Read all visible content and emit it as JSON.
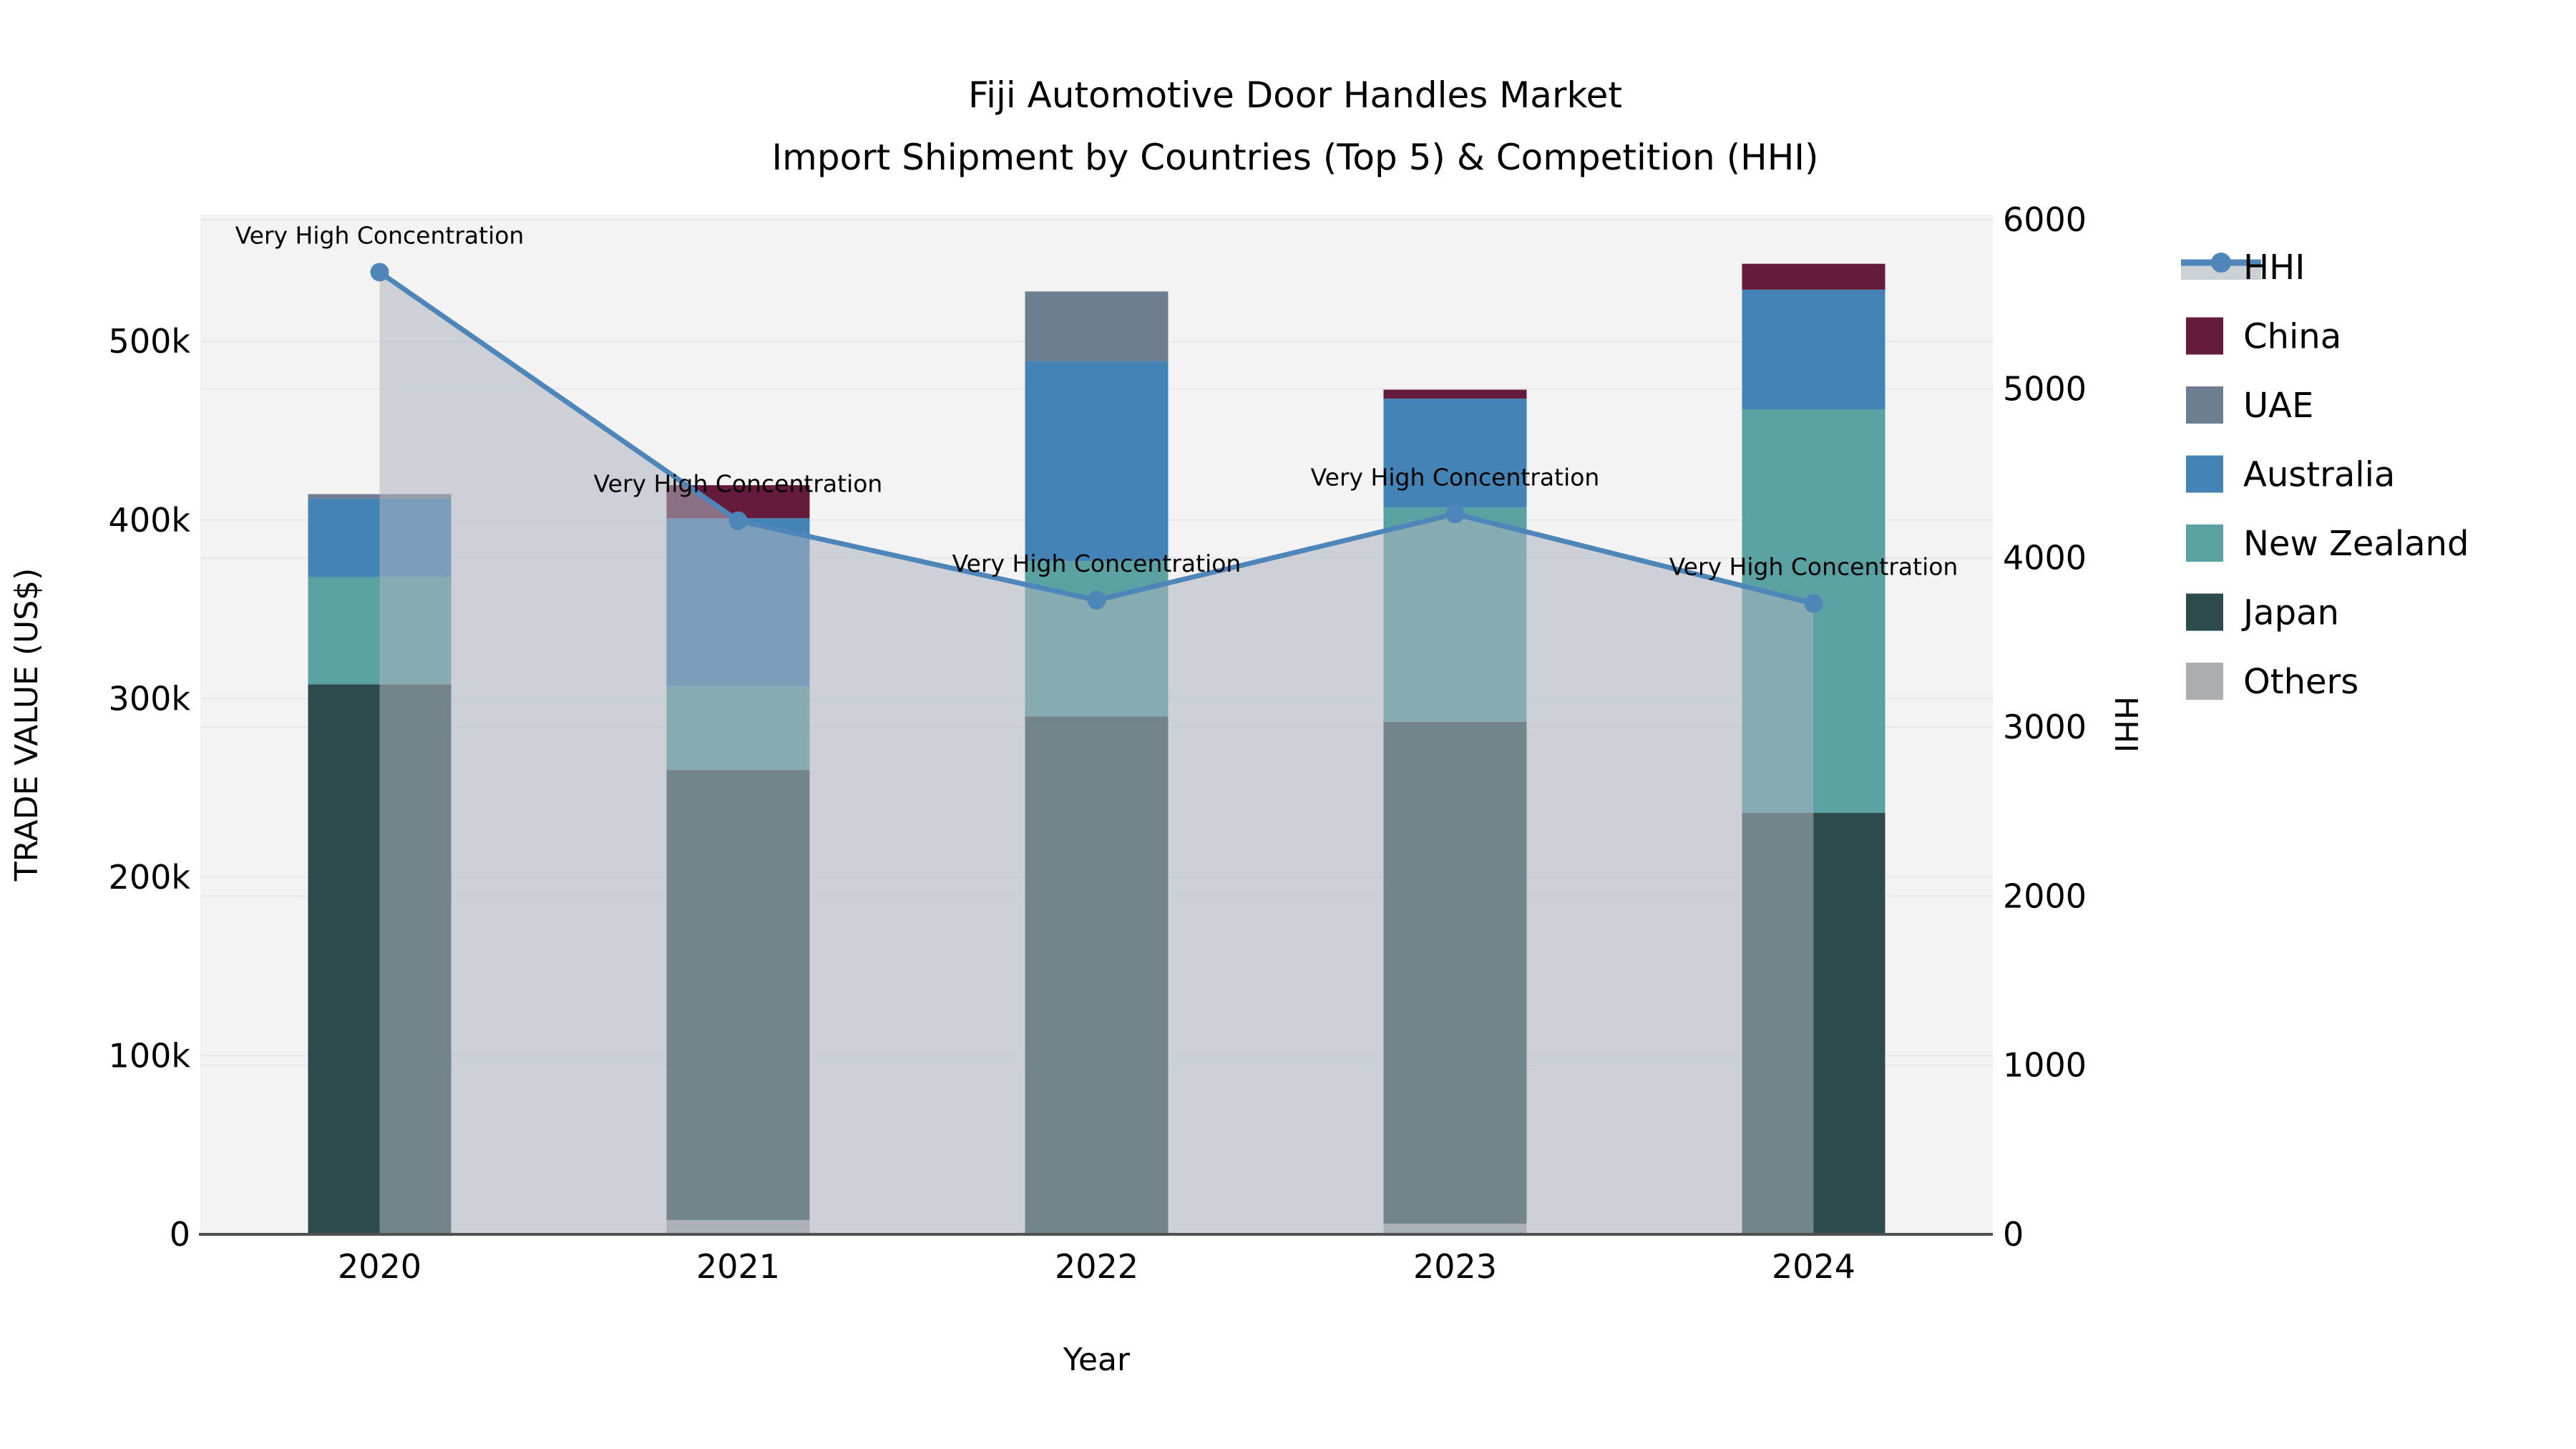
{
  "chart_data": {
    "type": "bar",
    "subtype": "stacked-bar-with-line",
    "title_line1": "Fiji Automotive Door Handles Market",
    "title_line2": "Import Shipment by Countries (Top 5) & Competition (HHI)",
    "xlabel": "Year",
    "ylabel_left": "TRADE VALUE (US$)",
    "ylabel_right": "HHI",
    "categories": [
      "2020",
      "2021",
      "2022",
      "2023",
      "2024"
    ],
    "stack_note": "series listed bottom-to-top as stacked",
    "series": [
      {
        "name": "Others",
        "color": "#abaeb0",
        "values": [
          0,
          8000,
          0,
          6000,
          0
        ]
      },
      {
        "name": "Japan",
        "color": "#2d4b4c",
        "values": [
          308000,
          252000,
          290000,
          281000,
          236000
        ]
      },
      {
        "name": "New Zealand",
        "color": "#5aa1a3",
        "values": [
          60000,
          47000,
          87000,
          120000,
          226000
        ]
      },
      {
        "name": "Australia",
        "color": "#4483b6",
        "values": [
          44000,
          94000,
          112000,
          61000,
          67000
        ]
      },
      {
        "name": "UAE",
        "color": "#6f7d90",
        "values": [
          2500,
          0,
          39000,
          0,
          0
        ]
      },
      {
        "name": "China",
        "color": "#651b3b",
        "values": [
          0,
          18500,
          0,
          5000,
          14500
        ]
      }
    ],
    "line_series": {
      "name": "HHI",
      "color": "#4e86b9",
      "area_fill": "rgba(173,180,192,0.55)",
      "values": [
        5690,
        4220,
        3750,
        4260,
        3730
      ]
    },
    "annotations": [
      {
        "category": "2020",
        "text": "Very High Concentration"
      },
      {
        "category": "2021",
        "text": "Very High Concentration"
      },
      {
        "category": "2022",
        "text": "Very High Concentration"
      },
      {
        "category": "2023",
        "text": "Very High Concentration"
      },
      {
        "category": "2024",
        "text": "Very High Concentration"
      }
    ],
    "y_left": {
      "ticks": [
        0,
        100000,
        200000,
        300000,
        400000,
        500000
      ],
      "tick_labels": [
        "0",
        "100k",
        "200k",
        "300k",
        "400k",
        "500k"
      ],
      "max": 571000
    },
    "y_right": {
      "ticks": [
        0,
        1000,
        2000,
        3000,
        4000,
        5000,
        6000
      ],
      "tick_labels": [
        "0",
        "1000",
        "2000",
        "3000",
        "4000",
        "5000",
        "6000"
      ],
      "max": 6030
    },
    "legend": {
      "entries": [
        "HHI",
        "China",
        "UAE",
        "Australia",
        "New Zealand",
        "Japan",
        "Others"
      ],
      "position": "right-outside"
    },
    "grid": true,
    "plot_bg": "#f3f3f4",
    "grid_color": "#e6e6e8",
    "axis_line_color": "#4d5154"
  }
}
